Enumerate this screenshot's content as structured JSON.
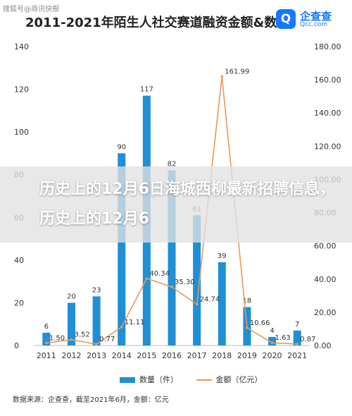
{
  "watermark": "搜狐号@商讯快报",
  "logo": {
    "name": "企查查",
    "sub": "Qcc.com"
  },
  "overlay_text": "历史上的12月6日海城西柳最新招聘信息，历史上的12月6",
  "source": "数据来源：企查查，截至2021年6月，金额：亿元",
  "chart_data": {
    "type": "bar",
    "title": "2011-2021年陌生人社交赛道融资金额&数量",
    "categories": [
      "2011",
      "2012",
      "2013",
      "2014",
      "2015",
      "2016",
      "2017",
      "2018",
      "2019",
      "2020",
      "2021"
    ],
    "series": [
      {
        "name": "数量（件）",
        "type": "bar",
        "axis": "left",
        "color": "#1f8fd6",
        "values": [
          6,
          20,
          23,
          90,
          117,
          82,
          61,
          39,
          18,
          4,
          7
        ],
        "labels": [
          "6",
          "20",
          "23",
          "90",
          "117",
          "82",
          "61",
          "39",
          "18",
          "4",
          "7"
        ]
      },
      {
        "name": "金额（亿元）",
        "type": "line",
        "axis": "right",
        "color": "#e59a5a",
        "values": [
          1.5,
          3.52,
          0.77,
          11.11,
          40.34,
          35.3,
          24.74,
          161.99,
          10.66,
          1.63,
          0.87
        ],
        "labels": [
          "1.50",
          "3.52",
          "0.77",
          "11.11",
          "40.34",
          "35.30",
          "24.74",
          "161.99",
          "10.66",
          "1.63",
          "0.87"
        ]
      }
    ],
    "left_axis": {
      "min": 0,
      "max": 140,
      "ticks": [
        "0",
        "20",
        "40",
        "60",
        "80",
        "100",
        "120",
        "140"
      ]
    },
    "right_axis": {
      "min": 0,
      "max": 180,
      "ticks": [
        "0.00",
        "20.00",
        "40.00",
        "60.00",
        "80.00",
        "100.00",
        "120.00",
        "140.00",
        "160.00",
        "180.00"
      ]
    },
    "legend": "bottom"
  }
}
